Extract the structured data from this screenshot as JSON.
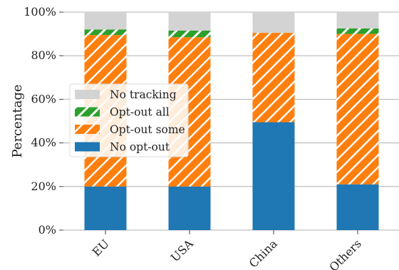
{
  "chart_data": {
    "type": "bar",
    "stacked": true,
    "percent": true,
    "ylabel": "Percentage",
    "xlabel": "",
    "ylim": [
      0,
      100
    ],
    "yticks": [
      "0%",
      "20%",
      "40%",
      "60%",
      "80%",
      "100%"
    ],
    "ytick_values": [
      0,
      20,
      40,
      60,
      80,
      100
    ],
    "categories": [
      "EU",
      "USA",
      "China",
      "Others"
    ],
    "grid": "horizontal",
    "legend_position": "center-left",
    "series": [
      {
        "name": "No opt-out",
        "values": [
          20,
          20,
          49.5,
          21
        ],
        "color": "#1f77b4",
        "pattern": "solid"
      },
      {
        "name": "Opt-out some",
        "values": [
          69.5,
          68.5,
          41,
          69
        ],
        "color": "#ff7f0e",
        "pattern": "hatch-diagonal"
      },
      {
        "name": "Opt-out all",
        "values": [
          2.5,
          3,
          0,
          2.5
        ],
        "color": "#2ca02c",
        "pattern": "hatch-diagonal"
      },
      {
        "name": "No tracking",
        "values": [
          8,
          8.5,
          9.5,
          7.5
        ],
        "color": "#d3d3d3",
        "pattern": "solid"
      }
    ],
    "legend_order": [
      "No tracking",
      "Opt-out all",
      "Opt-out some",
      "No opt-out"
    ]
  }
}
